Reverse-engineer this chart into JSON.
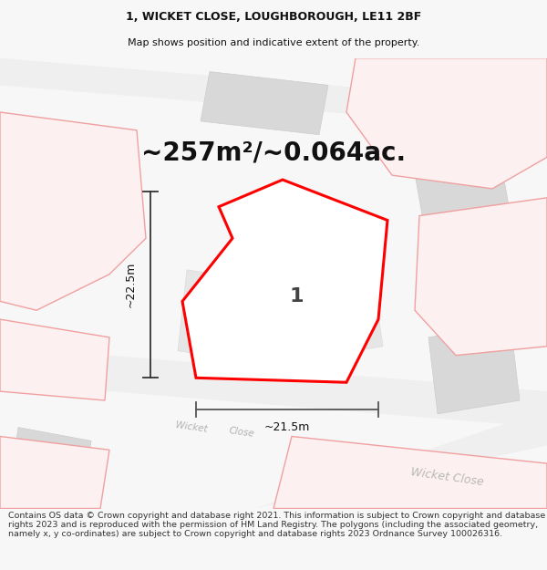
{
  "title_line1": "1, WICKET CLOSE, LOUGHBOROUGH, LE11 2BF",
  "title_line2": "Map shows position and indicative extent of the property.",
  "area_text": "~257m²/~0.064ac.",
  "label_number": "1",
  "dim_vertical": "~22.5m",
  "dim_horizontal": "~21.5m",
  "footer_text": "Contains OS data © Crown copyright and database right 2021. This information is subject to Crown copyright and database rights 2023 and is reproduced with the permission of HM Land Registry. The polygons (including the associated geometry, namely x, y co-ordinates) are subject to Crown copyright and database rights 2023 Ordnance Survey 100026316.",
  "bg_color": "#f7f7f7",
  "map_bg": "#f8f8f8",
  "property_fill": "#ffffff",
  "property_edge": "#ff0000",
  "road_fill": "#efefef",
  "gray_fill": "#d8d8d8",
  "gray_edge": "#cccccc",
  "pink_edge": "#f0a0a0",
  "pink_fill": "#fdf0f0",
  "street_color": "#b0b0b0",
  "dim_color": "#333333",
  "title_fontsize": 9,
  "subtitle_fontsize": 8,
  "area_fontsize": 20,
  "label_fontsize": 16,
  "footer_fontsize": 6.8,
  "street_fontsize": 7.5
}
